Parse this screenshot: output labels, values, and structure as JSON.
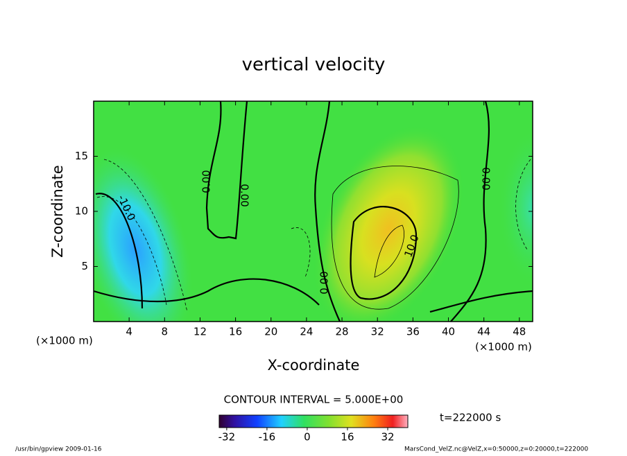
{
  "chart_data": {
    "type": "contour",
    "title": "vertical velocity",
    "x_label": "X-coordinate",
    "y_label": "Z-coordinate",
    "x_unit": "(×1000 m)",
    "xlim": [
      0,
      49.5
    ],
    "xticks": [
      4,
      8,
      12,
      16,
      20,
      24,
      28,
      32,
      36,
      40,
      44,
      48
    ],
    "ylim": [
      0,
      20
    ],
    "yticks": [
      5,
      10,
      15
    ],
    "contour_interval_label": "CONTOUR INTERVAL = 5.000E+00",
    "contour_labels": [
      "0.00",
      "0.00",
      "0.00",
      "0.00",
      "-10.0",
      "10.0"
    ],
    "colorbar": {
      "lim": [
        -35,
        40
      ],
      "ticks": [
        -32,
        -16,
        0,
        16,
        32
      ]
    },
    "time_label": "t=222000 s",
    "footer_left": "/usr/bin/gpview  2009-01-16",
    "footer_right": "MarsCond_VelZ.nc@VelZ,x=0:50000,z=0:20000,t=222000"
  }
}
